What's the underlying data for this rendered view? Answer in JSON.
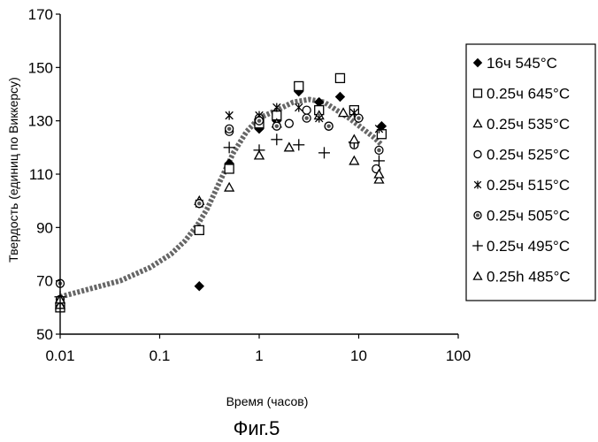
{
  "figure_caption": "Фиг.5",
  "chart_data": {
    "type": "scatter",
    "xlabel": "Время (часов)",
    "ylabel": "Твердость (единиц по Виккерсу)",
    "x_scale": "log",
    "xlim": [
      0.01,
      100
    ],
    "ylim": [
      50,
      170
    ],
    "x_ticks": [
      0.01,
      0.1,
      1,
      10,
      100
    ],
    "x_tick_labels": [
      "0.01",
      "0.1",
      "1",
      "10",
      "100"
    ],
    "y_ticks": [
      50,
      70,
      90,
      110,
      130,
      150,
      170
    ],
    "y_tick_labels": [
      "50",
      "70",
      "90",
      "110",
      "130",
      "150",
      "170"
    ],
    "grid": false,
    "legend_position": "right",
    "series": [
      {
        "name": "16ч 545°C",
        "marker": "diamond-filled",
        "color": "#000000",
        "points": [
          [
            0.01,
            62
          ],
          [
            0.25,
            68
          ],
          [
            0.5,
            114
          ],
          [
            1.0,
            127
          ],
          [
            1.5,
            130
          ],
          [
            2.5,
            141
          ],
          [
            4.0,
            137
          ],
          [
            6.5,
            139
          ],
          [
            10.0,
            131
          ],
          [
            17.0,
            128
          ]
        ]
      },
      {
        "name": "0.25ч 645°C",
        "marker": "square-open",
        "color": "#000000",
        "points": [
          [
            0.01,
            60
          ],
          [
            0.25,
            89
          ],
          [
            0.5,
            112
          ],
          [
            1.0,
            129
          ],
          [
            1.5,
            132
          ],
          [
            2.5,
            143
          ],
          [
            4.0,
            134
          ],
          [
            6.5,
            146
          ],
          [
            9.0,
            134
          ],
          [
            17.0,
            125
          ]
        ]
      },
      {
        "name": "0.25ч 535°C",
        "marker": "triangle-open",
        "color": "#000000",
        "points": [
          [
            0.01,
            61
          ],
          [
            0.25,
            100
          ],
          [
            0.5,
            105
          ],
          [
            1.0,
            117
          ],
          [
            1.5,
            129
          ],
          [
            2.0,
            120
          ],
          [
            4.0,
            132
          ],
          [
            7.0,
            133
          ],
          [
            9.0,
            115
          ],
          [
            16.0,
            108
          ]
        ]
      },
      {
        "name": "0.25ч 525°C",
        "marker": "circle-open",
        "color": "#000000",
        "points": [
          [
            0.01,
            63
          ],
          [
            0.25,
            99
          ],
          [
            0.5,
            126
          ],
          [
            1.0,
            131
          ],
          [
            2.0,
            129
          ],
          [
            3.0,
            134
          ],
          [
            5.0,
            128
          ],
          [
            9.0,
            121
          ],
          [
            15.0,
            112
          ]
        ]
      },
      {
        "name": "0.25ч 515°C",
        "marker": "asterisk",
        "color": "#000000",
        "points": [
          [
            0.01,
            62
          ],
          [
            0.25,
            99
          ],
          [
            0.5,
            132
          ],
          [
            1.0,
            132
          ],
          [
            1.5,
            135
          ],
          [
            2.5,
            135
          ],
          [
            4.0,
            131
          ],
          [
            9.0,
            133
          ],
          [
            16.0,
            127
          ]
        ]
      },
      {
        "name": "0.25ч 505°C",
        "marker": "circle-dot",
        "color": "#000000",
        "points": [
          [
            0.01,
            69
          ],
          [
            0.25,
            99
          ],
          [
            0.5,
            127
          ],
          [
            1.0,
            130
          ],
          [
            1.5,
            128
          ],
          [
            3.0,
            131
          ],
          [
            5.0,
            128
          ],
          [
            10.0,
            131
          ],
          [
            16.0,
            119
          ]
        ]
      },
      {
        "name": "0.25ч 495°C",
        "marker": "plus",
        "color": "#000000",
        "points": [
          [
            0.01,
            64
          ],
          [
            0.5,
            120
          ],
          [
            1.0,
            119
          ],
          [
            1.5,
            123
          ],
          [
            2.5,
            121
          ],
          [
            4.5,
            118
          ],
          [
            9.0,
            122
          ],
          [
            16.0,
            115
          ]
        ]
      },
      {
        "name": "0.25h 485°C",
        "marker": "triangle-open",
        "color": "#000000",
        "points": [
          [
            0.01,
            63
          ],
          [
            1.0,
            117
          ],
          [
            2.0,
            120
          ],
          [
            9.0,
            123
          ],
          [
            16.0,
            110
          ]
        ]
      }
    ],
    "trend": {
      "style": "dotted-thick",
      "color": "#555555",
      "points": [
        [
          0.01,
          64
        ],
        [
          0.02,
          67
        ],
        [
          0.04,
          70
        ],
        [
          0.08,
          75
        ],
        [
          0.13,
          80
        ],
        [
          0.18,
          85
        ],
        [
          0.24,
          91
        ],
        [
          0.3,
          97
        ],
        [
          0.4,
          107
        ],
        [
          0.55,
          118
        ],
        [
          0.75,
          126
        ],
        [
          1.0,
          131
        ],
        [
          1.5,
          134
        ],
        [
          2.2,
          137
        ],
        [
          3.2,
          138
        ],
        [
          4.5,
          137
        ],
        [
          6.0,
          134
        ],
        [
          8.0,
          131
        ],
        [
          11.0,
          127
        ],
        [
          14.0,
          124
        ],
        [
          17.0,
          121
        ]
      ]
    }
  }
}
